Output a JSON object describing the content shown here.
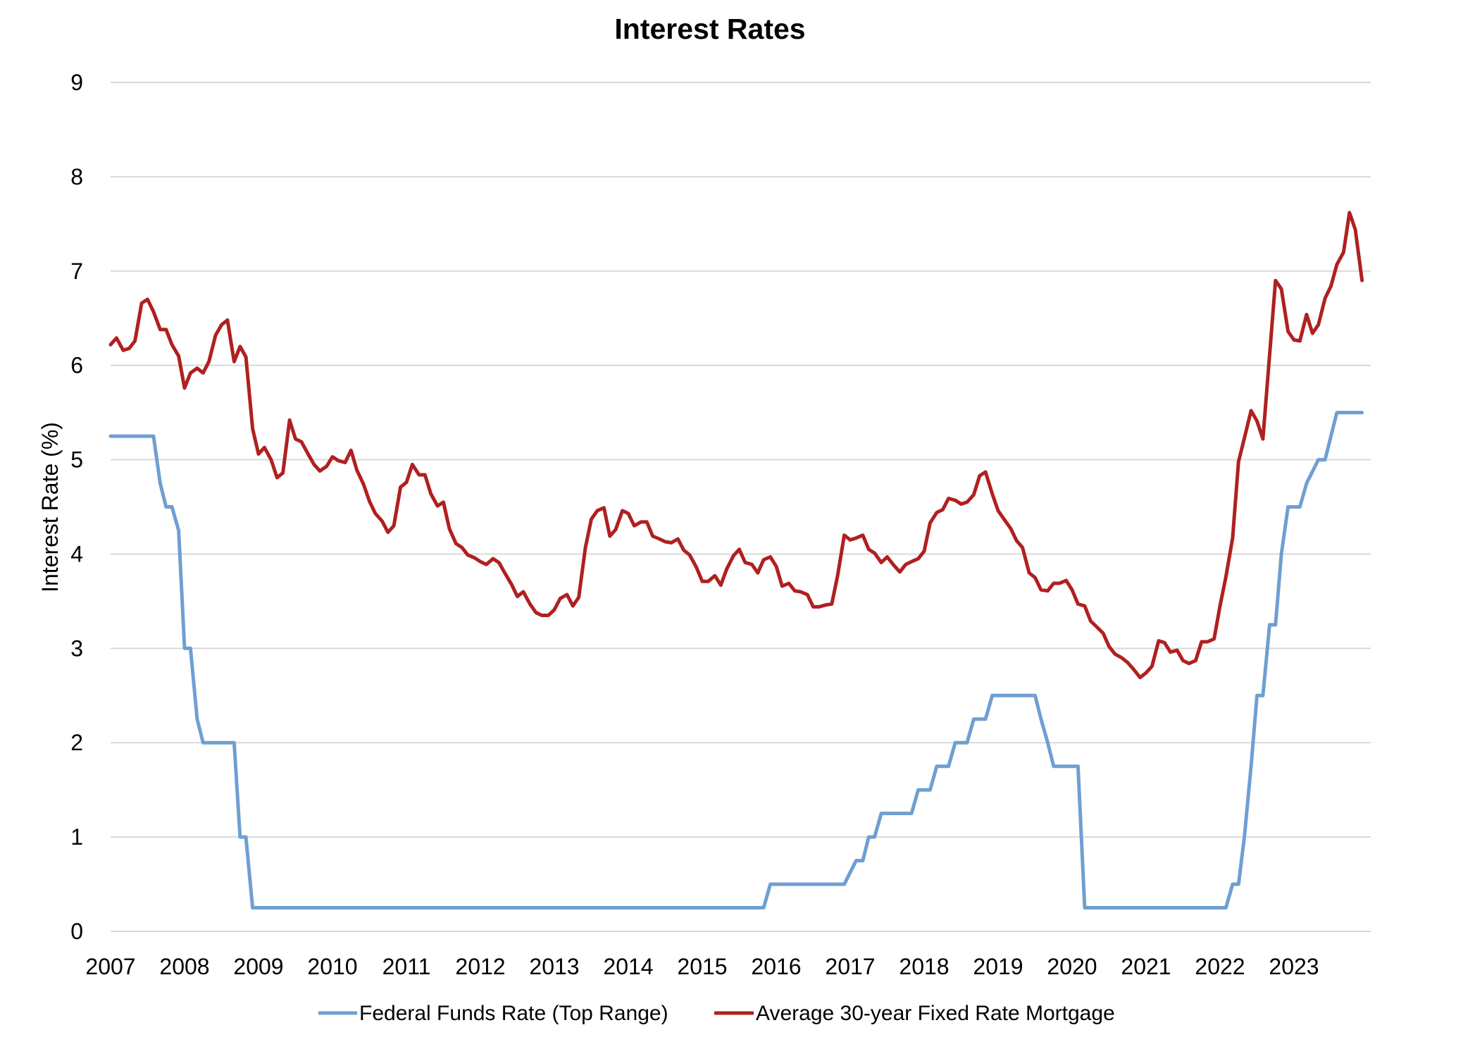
{
  "chart_data": {
    "type": "line",
    "title": "Interest Rates",
    "xlabel": "",
    "ylabel": "Interest Rate (%)",
    "ylim": [
      0,
      9
    ],
    "xlim": [
      2007,
      2023.95
    ],
    "yticks": [
      "0",
      "1",
      "2",
      "3",
      "4",
      "5",
      "6",
      "7",
      "8",
      "9"
    ],
    "xticks": [
      "2007",
      "2008",
      "2009",
      "2010",
      "2011",
      "2012",
      "2013",
      "2014",
      "2015",
      "2016",
      "2017",
      "2018",
      "2019",
      "2020",
      "2021",
      "2022",
      "2023"
    ],
    "grid": "horizontal",
    "legend_position": "bottom",
    "series": [
      {
        "name": "Federal Funds Rate (Top Range)",
        "color": "#6e9fd1",
        "x": [
          2007.0,
          2007.58,
          2007.67,
          2007.75,
          2007.83,
          2007.92,
          2008.0,
          2008.08,
          2008.17,
          2008.25,
          2008.33,
          2008.5,
          2008.67,
          2008.75,
          2008.83,
          2008.92,
          2009.0,
          2015.83,
          2015.92,
          2016.83,
          2016.92,
          2017.08,
          2017.17,
          2017.25,
          2017.33,
          2017.42,
          2017.83,
          2017.92,
          2018.08,
          2018.17,
          2018.33,
          2018.42,
          2018.58,
          2018.67,
          2018.83,
          2018.92,
          2019.42,
          2019.5,
          2019.58,
          2019.67,
          2019.75,
          2019.83,
          2020.08,
          2020.17,
          2022.08,
          2022.17,
          2022.25,
          2022.33,
          2022.42,
          2022.5,
          2022.58,
          2022.67,
          2022.75,
          2022.83,
          2022.92,
          2023.08,
          2023.17,
          2023.33,
          2023.42,
          2023.5,
          2023.58,
          2023.92
        ],
        "y": [
          5.25,
          5.25,
          4.75,
          4.5,
          4.5,
          4.25,
          3.0,
          3.0,
          2.25,
          2.0,
          2.0,
          2.0,
          2.0,
          1.0,
          1.0,
          0.25,
          0.25,
          0.25,
          0.5,
          0.5,
          0.5,
          0.75,
          0.75,
          1.0,
          1.0,
          1.25,
          1.25,
          1.5,
          1.5,
          1.75,
          1.75,
          2.0,
          2.0,
          2.25,
          2.25,
          2.5,
          2.5,
          2.5,
          2.25,
          2.0,
          1.75,
          1.75,
          1.75,
          0.25,
          0.25,
          0.5,
          0.5,
          1.0,
          1.75,
          2.5,
          2.5,
          3.25,
          3.25,
          4.0,
          4.5,
          4.5,
          4.75,
          5.0,
          5.0,
          5.25,
          5.5,
          5.5
        ]
      },
      {
        "name": "Average 30-year Fixed Rate Mortgage",
        "color": "#b02020",
        "x": [
          2007.0,
          2007.08,
          2007.17,
          2007.25,
          2007.33,
          2007.42,
          2007.5,
          2007.58,
          2007.67,
          2007.75,
          2007.83,
          2007.92,
          2008.0,
          2008.08,
          2008.17,
          2008.25,
          2008.33,
          2008.42,
          2008.5,
          2008.58,
          2008.67,
          2008.75,
          2008.83,
          2008.92,
          2009.0,
          2009.08,
          2009.17,
          2009.25,
          2009.33,
          2009.42,
          2009.5,
          2009.58,
          2009.67,
          2009.75,
          2009.83,
          2009.92,
          2010.0,
          2010.08,
          2010.17,
          2010.25,
          2010.33,
          2010.42,
          2010.5,
          2010.58,
          2010.67,
          2010.75,
          2010.83,
          2010.92,
          2011.0,
          2011.08,
          2011.17,
          2011.25,
          2011.33,
          2011.42,
          2011.5,
          2011.58,
          2011.67,
          2011.75,
          2011.83,
          2011.92,
          2012.0,
          2012.08,
          2012.17,
          2012.25,
          2012.33,
          2012.42,
          2012.5,
          2012.58,
          2012.67,
          2012.75,
          2012.83,
          2012.92,
          2013.0,
          2013.08,
          2013.17,
          2013.25,
          2013.33,
          2013.42,
          2013.5,
          2013.58,
          2013.67,
          2013.75,
          2013.83,
          2013.92,
          2014.0,
          2014.08,
          2014.17,
          2014.25,
          2014.33,
          2014.42,
          2014.5,
          2014.58,
          2014.67,
          2014.75,
          2014.83,
          2014.92,
          2015.0,
          2015.08,
          2015.17,
          2015.25,
          2015.33,
          2015.42,
          2015.5,
          2015.58,
          2015.67,
          2015.75,
          2015.83,
          2015.92,
          2016.0,
          2016.08,
          2016.17,
          2016.25,
          2016.33,
          2016.42,
          2016.5,
          2016.58,
          2016.67,
          2016.75,
          2016.83,
          2016.92,
          2017.0,
          2017.08,
          2017.17,
          2017.25,
          2017.33,
          2017.42,
          2017.5,
          2017.58,
          2017.67,
          2017.75,
          2017.83,
          2017.92,
          2018.0,
          2018.08,
          2018.17,
          2018.25,
          2018.33,
          2018.42,
          2018.5,
          2018.58,
          2018.67,
          2018.75,
          2018.83,
          2018.92,
          2019.0,
          2019.08,
          2019.17,
          2019.25,
          2019.33,
          2019.42,
          2019.5,
          2019.58,
          2019.67,
          2019.75,
          2019.83,
          2019.92,
          2020.0,
          2020.08,
          2020.17,
          2020.25,
          2020.33,
          2020.42,
          2020.5,
          2020.58,
          2020.67,
          2020.75,
          2020.83,
          2020.92,
          2021.0,
          2021.08,
          2021.17,
          2021.25,
          2021.33,
          2021.42,
          2021.5,
          2021.58,
          2021.67,
          2021.75,
          2021.83,
          2021.92,
          2022.0,
          2022.08,
          2022.17,
          2022.25,
          2022.33,
          2022.42,
          2022.5,
          2022.58,
          2022.67,
          2022.75,
          2022.83,
          2022.92,
          2023.0,
          2023.08,
          2023.17,
          2023.25,
          2023.33,
          2023.42,
          2023.5,
          2023.58,
          2023.67,
          2023.75,
          2023.83,
          2023.92
        ],
        "y": [
          6.22,
          6.29,
          6.16,
          6.18,
          6.26,
          6.66,
          6.7,
          6.57,
          6.38,
          6.38,
          6.22,
          6.1,
          5.76,
          5.92,
          5.97,
          5.92,
          6.04,
          6.32,
          6.43,
          6.48,
          6.04,
          6.2,
          6.09,
          5.33,
          5.06,
          5.13,
          5.0,
          4.81,
          4.86,
          5.42,
          5.22,
          5.19,
          5.06,
          4.95,
          4.88,
          4.93,
          5.03,
          4.99,
          4.97,
          5.1,
          4.89,
          4.74,
          4.56,
          4.43,
          4.35,
          4.23,
          4.3,
          4.71,
          4.76,
          4.95,
          4.84,
          4.84,
          4.64,
          4.51,
          4.55,
          4.27,
          4.11,
          4.07,
          3.99,
          3.96,
          3.92,
          3.89,
          3.95,
          3.91,
          3.8,
          3.68,
          3.55,
          3.6,
          3.47,
          3.38,
          3.35,
          3.35,
          3.41,
          3.53,
          3.57,
          3.45,
          3.54,
          4.07,
          4.37,
          4.46,
          4.49,
          4.19,
          4.26,
          4.46,
          4.43,
          4.3,
          4.34,
          4.34,
          4.19,
          4.16,
          4.13,
          4.12,
          4.16,
          4.04,
          3.99,
          3.86,
          3.71,
          3.71,
          3.77,
          3.67,
          3.84,
          3.98,
          4.05,
          3.91,
          3.89,
          3.8,
          3.94,
          3.97,
          3.87,
          3.66,
          3.69,
          3.61,
          3.6,
          3.57,
          3.44,
          3.44,
          3.46,
          3.47,
          3.77,
          4.2,
          4.15,
          4.17,
          4.2,
          4.05,
          4.01,
          3.91,
          3.97,
          3.89,
          3.81,
          3.89,
          3.92,
          3.95,
          4.03,
          4.33,
          4.44,
          4.47,
          4.59,
          4.57,
          4.53,
          4.55,
          4.63,
          4.83,
          4.87,
          4.64,
          4.46,
          4.37,
          4.27,
          4.14,
          4.07,
          3.8,
          3.75,
          3.62,
          3.61,
          3.69,
          3.69,
          3.72,
          3.62,
          3.47,
          3.45,
          3.29,
          3.23,
          3.16,
          3.02,
          2.94,
          2.9,
          2.85,
          2.78,
          2.69,
          2.74,
          2.81,
          3.08,
          3.06,
          2.96,
          2.98,
          2.87,
          2.84,
          2.87,
          3.07,
          3.07,
          3.1,
          3.45,
          3.76,
          4.17,
          4.98,
          5.23,
          5.52,
          5.41,
          5.22,
          6.11,
          6.9,
          6.81,
          6.36,
          6.27,
          6.26,
          6.54,
          6.34,
          6.43,
          6.71,
          6.84,
          7.07,
          7.2,
          7.62,
          7.44,
          6.9
        ]
      }
    ]
  }
}
